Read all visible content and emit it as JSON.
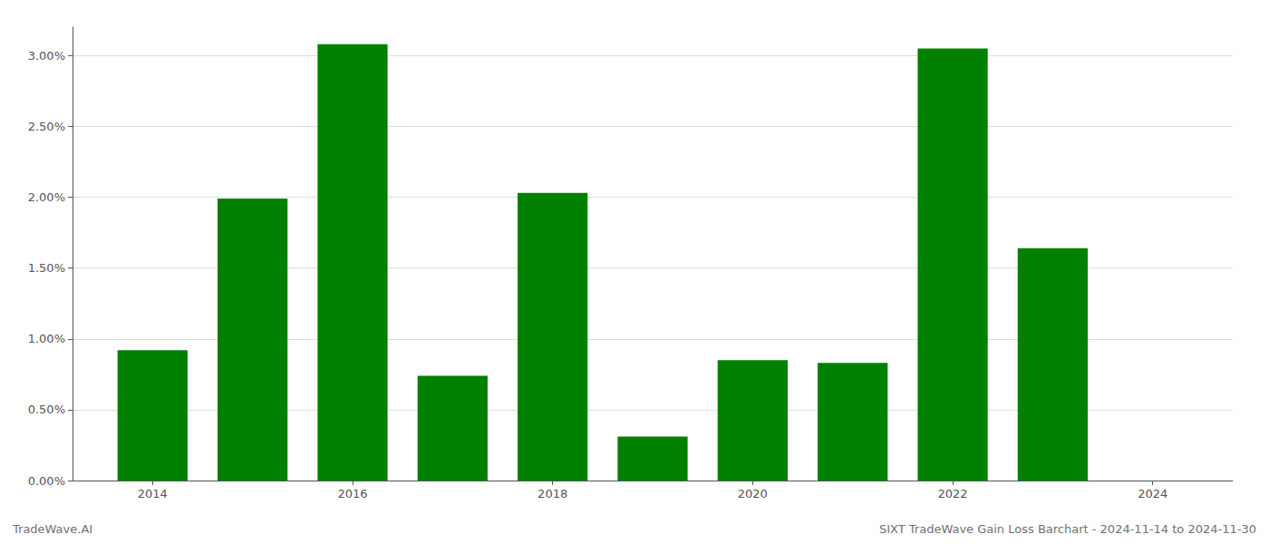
{
  "chart_data": {
    "type": "bar",
    "x": [
      2014,
      2015,
      2016,
      2017,
      2018,
      2019,
      2020,
      2021,
      2022,
      2023
    ],
    "values": [
      0.0092,
      0.0199,
      0.0308,
      0.0074,
      0.0203,
      0.0031,
      0.0085,
      0.0083,
      0.0305,
      0.0164
    ],
    "color": "#008000",
    "xlim": [
      2013.2,
      2024.8
    ],
    "xticks": [
      2014,
      2016,
      2018,
      2020,
      2022,
      2024
    ],
    "ylim": [
      0.0,
      0.032
    ],
    "yticks": [
      {
        "value": 0.0,
        "label": "0.00%"
      },
      {
        "value": 0.005,
        "label": "0.50%"
      },
      {
        "value": 0.01,
        "label": "1.00%"
      },
      {
        "value": 0.015,
        "label": "1.50%"
      },
      {
        "value": 0.02,
        "label": "2.00%"
      },
      {
        "value": 0.025,
        "label": "2.50%"
      },
      {
        "value": 0.03,
        "label": "3.00%"
      }
    ],
    "grid": true,
    "annotations": [
      "TradeWave.AI",
      "SIXT TradeWave Gain Loss Barchart - 2024-11-14 to 2024-11-30"
    ]
  }
}
